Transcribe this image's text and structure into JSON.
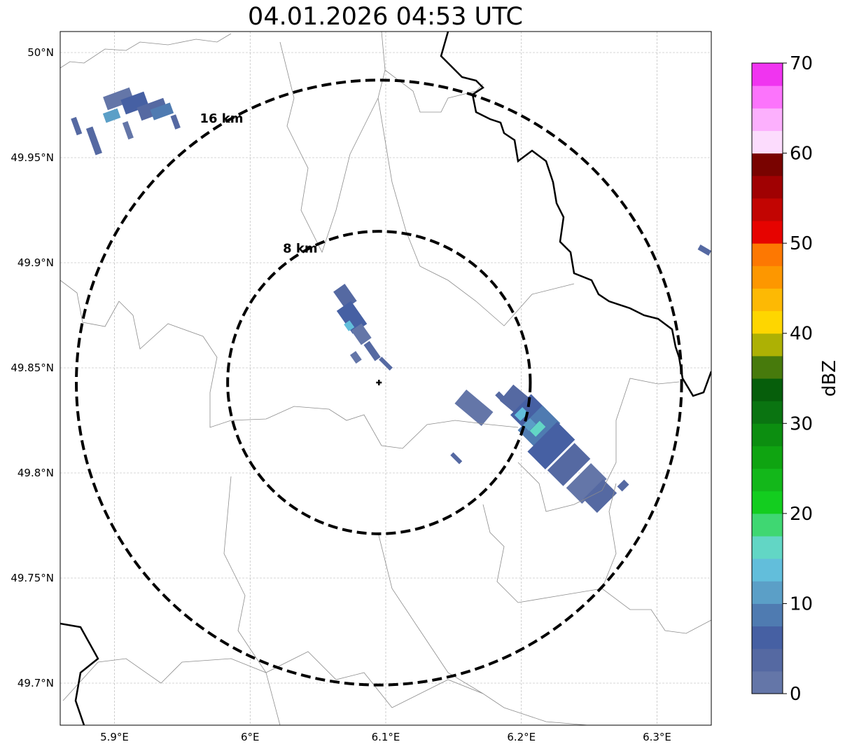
{
  "title": "04.01.2026 04:53 UTC",
  "map": {
    "lon_range": [
      5.86,
      6.34
    ],
    "lat_range": [
      49.68,
      50.01
    ],
    "lon_ticks": [
      {
        "value": 5.9,
        "label": "5.9°E"
      },
      {
        "value": 6.0,
        "label": "6°E"
      },
      {
        "value": 6.1,
        "label": "6.1°E"
      },
      {
        "value": 6.2,
        "label": "6.2°E"
      },
      {
        "value": 6.3,
        "label": "6.3°E"
      }
    ],
    "lat_ticks": [
      {
        "value": 50.0,
        "label": "50°N"
      },
      {
        "value": 49.95,
        "label": "49.95°N"
      },
      {
        "value": 49.9,
        "label": "49.9°N"
      },
      {
        "value": 49.85,
        "label": "49.85°N"
      },
      {
        "value": 49.8,
        "label": "49.8°N"
      },
      {
        "value": 49.75,
        "label": "49.75°N"
      },
      {
        "value": 49.7,
        "label": "49.7°N"
      }
    ],
    "radar_site": {
      "lon": 6.095,
      "lat": 49.843
    },
    "range_rings": [
      {
        "label": "8 km",
        "radius_km": 8
      },
      {
        "label": "16 km",
        "radius_km": 16
      }
    ]
  },
  "colorbar": {
    "unit": "dBZ",
    "min": 0,
    "max": 70,
    "tick_labels": [
      "0",
      "10",
      "20",
      "30",
      "40",
      "50",
      "60",
      "70"
    ],
    "tick_values": [
      0,
      10,
      20,
      30,
      40,
      50,
      60,
      70
    ],
    "colors": [
      "#6476a8",
      "#5569a2",
      "#4660a3",
      "#4f7bb1",
      "#5b9fc7",
      "#62bedb",
      "#62d6c5",
      "#3fd772",
      "#13cd1f",
      "#13b71a",
      "#0fa411",
      "#0c8e10",
      "#0a7411",
      "#065e0b",
      "#477a0c",
      "#adb104",
      "#fed600",
      "#fdb904",
      "#fd9700",
      "#fd7802",
      "#e60300",
      "#c20502",
      "#a00102",
      "#790300",
      "#fcdcfd",
      "#fcb0fd",
      "#fc74fc",
      "#f034f0"
    ]
  }
}
